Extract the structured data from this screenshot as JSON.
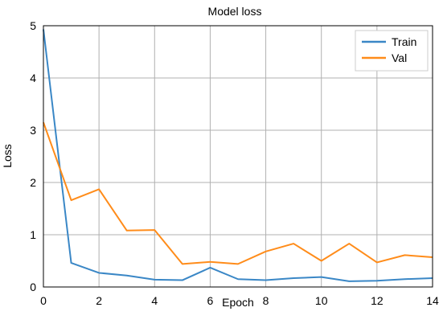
{
  "chart_data": {
    "type": "line",
    "title": "Model loss",
    "xlabel": "Epoch",
    "ylabel": "Loss",
    "xlim": [
      0,
      14
    ],
    "ylim": [
      0,
      5
    ],
    "xticks": [
      0,
      2,
      4,
      6,
      8,
      10,
      12,
      14
    ],
    "yticks": [
      0,
      1,
      2,
      3,
      4,
      5
    ],
    "grid": true,
    "legend_position": "top-right",
    "x": [
      0,
      1,
      2,
      3,
      4,
      5,
      6,
      7,
      8,
      9,
      10,
      11,
      12,
      13,
      14
    ],
    "series": [
      {
        "name": "Train",
        "color": "#3a87c6",
        "values": [
          4.93,
          0.46,
          0.27,
          0.22,
          0.14,
          0.13,
          0.37,
          0.15,
          0.13,
          0.17,
          0.19,
          0.11,
          0.12,
          0.15,
          0.17
        ]
      },
      {
        "name": "Val",
        "color": "#ff8c1a",
        "values": [
          3.15,
          1.66,
          1.87,
          1.08,
          1.09,
          0.44,
          0.48,
          0.44,
          0.68,
          0.83,
          0.5,
          0.83,
          0.47,
          0.61,
          0.57
        ]
      }
    ]
  }
}
